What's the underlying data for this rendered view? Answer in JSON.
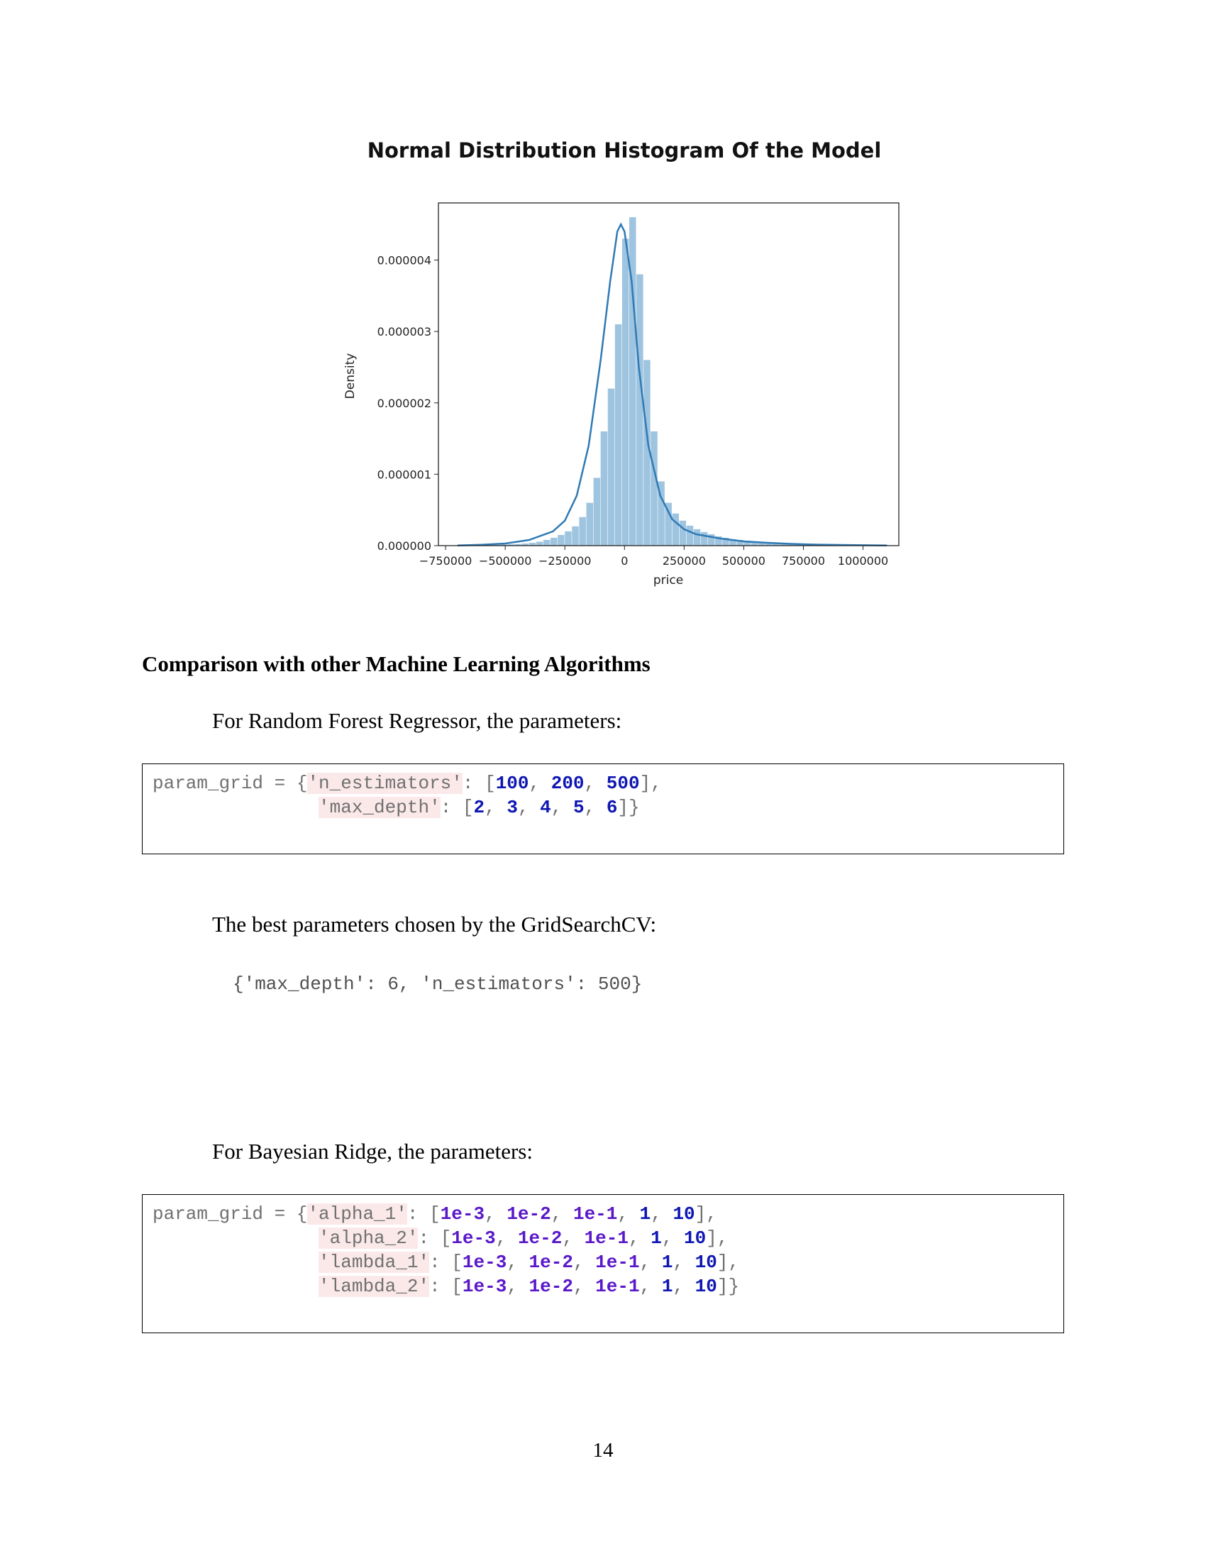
{
  "chart_data": {
    "type": "bar",
    "title": "Normal Distribution Histogram Of the Model",
    "xlabel": "price",
    "ylabel": "Density",
    "xlim": [
      -780000,
      1150000
    ],
    "ylim": [
      0,
      4.8e-06
    ],
    "x_ticks": [
      -750000,
      -500000,
      -250000,
      0,
      250000,
      500000,
      750000,
      1000000
    ],
    "x_tick_labels": [
      "−750000",
      "−500000",
      "−250000",
      "0",
      "250000",
      "500000",
      "750000",
      "1000000"
    ],
    "y_ticks": [
      0,
      1e-06,
      2e-06,
      3e-06,
      4e-06
    ],
    "y_tick_labels": [
      "0.000000",
      "0.000001",
      "0.000002",
      "0.000003",
      "0.000004"
    ],
    "bar_color": "#9ec4e0",
    "kde_color": "#2f7ab5",
    "bins_start": -700000,
    "bin_width": 30000,
    "bar_values": [
      4e-09,
      5e-09,
      6e-09,
      8e-09,
      1e-08,
      1.2e-08,
      1.5e-08,
      1.8e-08,
      2.2e-08,
      3e-08,
      4e-08,
      5.5e-08,
      8e-08,
      1.1e-07,
      1.5e-07,
      2e-07,
      2.7e-07,
      4e-07,
      6e-07,
      9.5e-07,
      1.6e-06,
      2.2e-06,
      3.1e-06,
      4.3e-06,
      4.6e-06,
      3.8e-06,
      2.6e-06,
      1.6e-06,
      9e-07,
      6e-07,
      4.5e-07,
      3.5e-07,
      2.8e-07,
      2.3e-07,
      1.9e-07,
      1.6e-07,
      1.3e-07,
      1.1e-07,
      9e-08,
      8e-08,
      7e-08,
      6e-08,
      5e-08,
      4e-08,
      3.5e-08,
      3e-08,
      3e-08,
      2.5e-08,
      2.2e-08,
      2e-08,
      1.8e-08,
      1.6e-08,
      1.4e-08,
      1.2e-08,
      1e-08,
      9e-09,
      8e-09,
      7e-09,
      6e-09,
      5e-09
    ],
    "kde_points": [
      [
        -700000,
        3e-09
      ],
      [
        -600000,
        1.2e-08
      ],
      [
        -500000,
        3e-08
      ],
      [
        -400000,
        8e-08
      ],
      [
        -300000,
        2e-07
      ],
      [
        -250000,
        3.5e-07
      ],
      [
        -200000,
        7e-07
      ],
      [
        -150000,
        1.4e-06
      ],
      [
        -100000,
        2.6e-06
      ],
      [
        -60000,
        3.7e-06
      ],
      [
        -30000,
        4.4e-06
      ],
      [
        -15000,
        4.5e-06
      ],
      [
        0,
        4.4e-06
      ],
      [
        30000,
        3.7e-06
      ],
      [
        60000,
        2.5e-06
      ],
      [
        100000,
        1.4e-06
      ],
      [
        150000,
        7e-07
      ],
      [
        200000,
        3.7e-07
      ],
      [
        250000,
        2.3e-07
      ],
      [
        300000,
        1.6e-07
      ],
      [
        400000,
        1e-07
      ],
      [
        500000,
        6e-08
      ],
      [
        600000,
        4e-08
      ],
      [
        700000,
        2.5e-08
      ],
      [
        800000,
        1.5e-08
      ],
      [
        900000,
        1e-08
      ],
      [
        1000000,
        6e-09
      ],
      [
        1100000,
        3e-09
      ]
    ]
  },
  "heading": "Comparison with other Machine Learning Algorithms",
  "rf_intro": "For Random Forest Regressor, the parameters:",
  "rf_code": {
    "line1": {
      "a": "param_grid = {",
      "s1": "'n_estimators'",
      "b": ": [",
      "n1": "100",
      "c1": ", ",
      "n2": "200",
      "c2": ", ",
      "n3": "500",
      "d": "],"
    },
    "line2": {
      "indent": "               ",
      "s1": "'max_depth'",
      "b": ": [",
      "n1": "2",
      "c1": ", ",
      "n2": "3",
      "c2": ", ",
      "n3": "4",
      "c3": ", ",
      "n4": "5",
      "c4": ", ",
      "n5": "6",
      "d": "]}"
    }
  },
  "best_intro": "The best parameters chosen by the GridSearchCV:",
  "best_result": "{'max_depth': 6, 'n_estimators': 500}",
  "br_intro": "For Bayesian Ridge, the parameters:",
  "br_code": [
    {
      "pre": "param_grid = {",
      "key": "'alpha_1'",
      "sep": ": [",
      "v1": "1e-3",
      "v2": "1e-2",
      "v3": "1e-1",
      "v4": "1",
      "v5": "10",
      "end": "],"
    },
    {
      "pre": "               ",
      "key": "'alpha_2'",
      "sep": ": [",
      "v1": "1e-3",
      "v2": "1e-2",
      "v3": "1e-1",
      "v4": "1",
      "v5": "10",
      "end": "],"
    },
    {
      "pre": "               ",
      "key": "'lambda_1'",
      "sep": ": [",
      "v1": "1e-3",
      "v2": "1e-2",
      "v3": "1e-1",
      "v4": "1",
      "v5": "10",
      "end": "],"
    },
    {
      "pre": "               ",
      "key": "'lambda_2'",
      "sep": ": [",
      "v1": "1e-3",
      "v2": "1e-2",
      "v3": "1e-1",
      "v4": "1",
      "v5": "10",
      "end": "]}"
    }
  ],
  "page_number": "14"
}
